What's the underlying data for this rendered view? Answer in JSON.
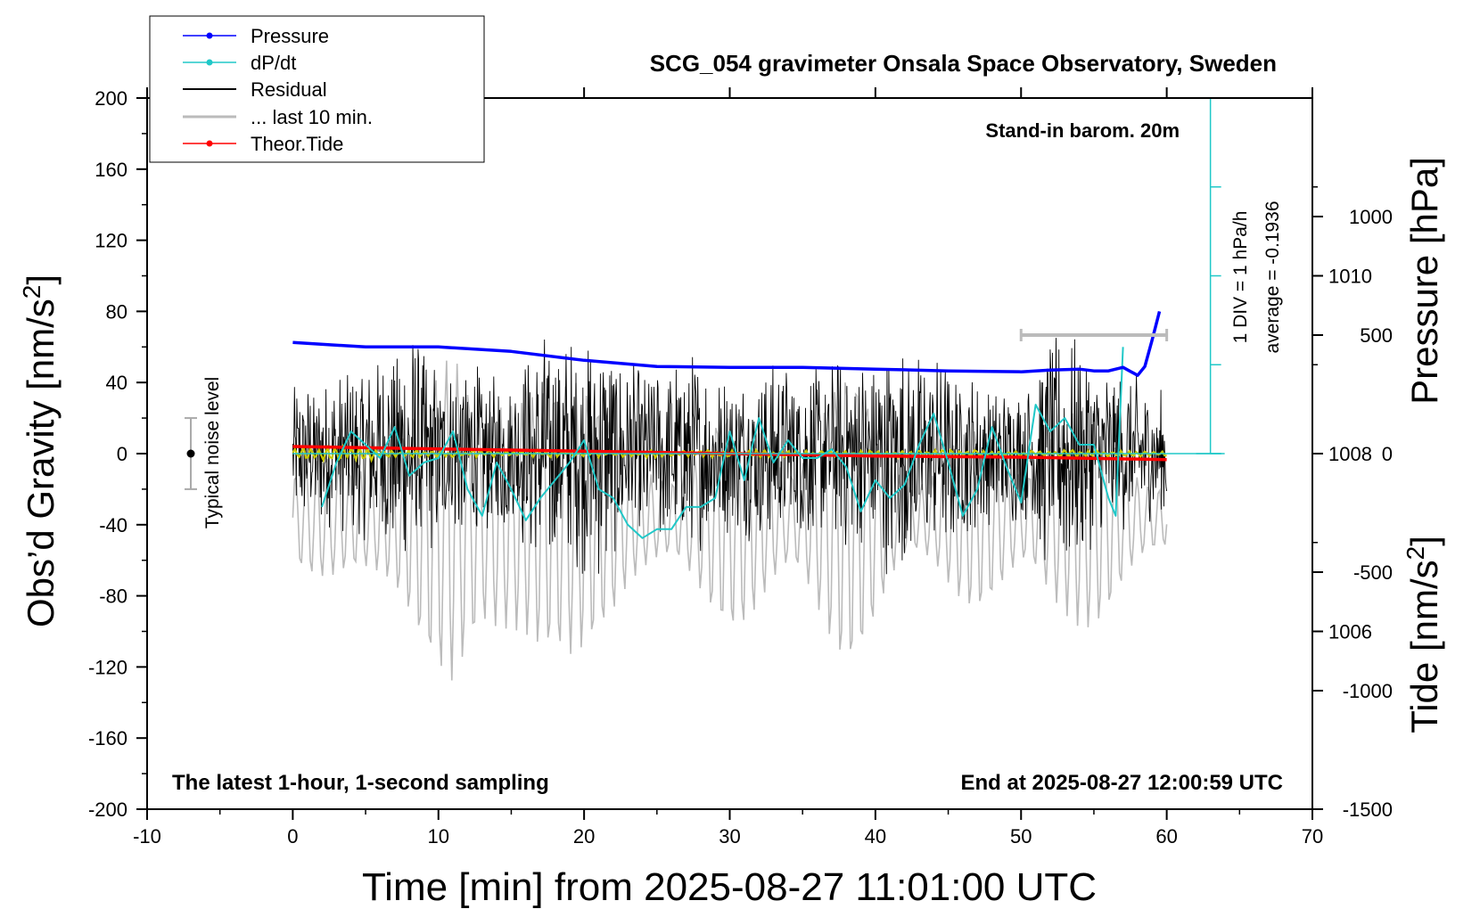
{
  "chart_data": {
    "type": "line",
    "title": "SCG_054 gravimeter Onsala Space Observatory, Sweden",
    "xlabel": "Time [min] from 2025-08-27 11:01:00 UTC",
    "ylabel_left": "Obs’d Gravity [nm/s²]",
    "ylabel_pressure": "Pressure [hPa]",
    "ylabel_tide": "Tide [nm/s²]",
    "xlim": [
      -10,
      70
    ],
    "ylim": [
      -200,
      200
    ],
    "pressure_range": [
      1004,
      1012
    ],
    "tide_range": [
      -1500,
      1500
    ],
    "x_ticks": [
      "-10",
      "0",
      "10",
      "20",
      "30",
      "40",
      "50",
      "60",
      "70"
    ],
    "y_ticks": [
      "-200",
      "-160",
      "-120",
      "-80",
      "-40",
      "0",
      "40",
      "80",
      "120",
      "160",
      "200"
    ],
    "pressure_ticks": [
      "1006",
      "1008",
      "1010"
    ],
    "tide_ticks": [
      "-1500",
      "-1000",
      "-500",
      "0",
      "500",
      "1000"
    ],
    "annotations": {
      "barometer": "Stand-in barom. 20m",
      "div": "1 DIV = 1 hPa/h",
      "average": "average = -0.1936",
      "noise": "Typical noise level",
      "bottom_left": "The latest 1-hour, 1-second sampling",
      "bottom_right": "End at 2025-08-27 12:00:59 UTC"
    },
    "legend": [
      "Pressure",
      "dP/dt",
      "Residual",
      "... last 10 min.",
      "Theor.Tide"
    ],
    "colors": {
      "pressure": "#0000ff",
      "dpdt": "#20c8c8",
      "residual": "#000000",
      "last10": "#bbbbbb",
      "tide": "#ff0000",
      "smooth": "#c8c800"
    },
    "series": [
      {
        "name": "Pressure",
        "unit": "hPa",
        "x": [
          0,
          5,
          10,
          15,
          20,
          25,
          30,
          35,
          40,
          45,
          50,
          52,
          54,
          55,
          56,
          57,
          58,
          58.5,
          59,
          59.5
        ],
        "y": [
          1009.25,
          1009.2,
          1009.2,
          1009.15,
          1009.05,
          1008.98,
          1008.97,
          1008.97,
          1008.95,
          1008.93,
          1008.92,
          1008.94,
          1008.95,
          1008.93,
          1008.93,
          1008.97,
          1008.88,
          1008.98,
          1009.28,
          1009.6
        ]
      },
      {
        "name": "dP/dt",
        "unit": "DIV",
        "x": [
          2,
          3,
          4,
          5,
          6,
          7,
          8,
          9,
          10,
          11,
          12,
          13,
          14,
          15,
          16,
          17,
          18,
          19,
          20,
          21,
          22,
          23,
          24,
          25,
          26,
          27,
          28,
          29,
          30,
          31,
          32,
          33,
          34,
          35,
          36,
          37,
          38,
          39,
          40,
          41,
          42,
          43,
          44,
          45,
          46,
          47,
          48,
          49,
          50,
          51,
          52,
          53,
          54,
          55,
          56,
          56.5,
          57
        ],
        "y": [
          -0.6,
          -0.1,
          0.25,
          0.1,
          -0.05,
          0.3,
          -0.25,
          -0.1,
          -0.05,
          0.25,
          -0.4,
          -0.7,
          -0.1,
          -0.4,
          -0.75,
          -0.5,
          -0.3,
          -0.1,
          0.15,
          -0.4,
          -0.5,
          -0.8,
          -0.95,
          -0.85,
          -0.85,
          -0.6,
          -0.6,
          -0.5,
          0.25,
          -0.3,
          0.4,
          -0.1,
          0.15,
          -0.05,
          -0.05,
          0.05,
          -0.15,
          -0.65,
          -0.3,
          -0.5,
          -0.35,
          0.1,
          0.45,
          -0.1,
          -0.7,
          -0.4,
          0.3,
          -0.15,
          -0.55,
          0.55,
          0.25,
          0.4,
          0.1,
          0.1,
          -0.5,
          -0.7,
          1.2
        ]
      },
      {
        "name": "Residual",
        "unit": "nm/s²",
        "x": [
          0,
          60
        ],
        "amplitude_envelope_x": [
          0,
          3,
          6,
          8,
          10,
          12,
          15,
          17,
          19,
          21,
          23,
          25,
          27,
          30,
          33,
          36,
          39,
          41,
          43,
          45,
          47,
          50,
          52,
          54,
          56,
          58,
          60
        ],
        "amplitude_envelope": [
          40,
          45,
          55,
          75,
          50,
          55,
          45,
          70,
          65,
          75,
          55,
          50,
          60,
          45,
          55,
          50,
          60,
          70,
          60,
          55,
          45,
          40,
          70,
          65,
          50,
          45,
          35
        ]
      },
      {
        "name": "... last 10 min.",
        "unit": "nm/s²",
        "x": [
          0,
          60
        ],
        "baseline_tide": -270,
        "amplitude_envelope_x": [
          0,
          4,
          7,
          9,
          11,
          13,
          15,
          17,
          19,
          21,
          23,
          26,
          29,
          32,
          35,
          38,
          41,
          44,
          47,
          50,
          52,
          54,
          56,
          58,
          60
        ],
        "amplitude_envelope": [
          200,
          300,
          450,
          650,
          800,
          550,
          700,
          850,
          750,
          500,
          350,
          300,
          400,
          500,
          500,
          550,
          450,
          300,
          350,
          350,
          600,
          500,
          400,
          250,
          200
        ]
      },
      {
        "name": "Theor.Tide",
        "unit": "nm/s²",
        "x": [
          0,
          10,
          20,
          30,
          40,
          50,
          60
        ],
        "y": [
          30,
          20,
          10,
          0,
          -10,
          -15,
          -25
        ]
      }
    ],
    "noise_level": {
      "x": -7,
      "center": 0,
      "half_range": 20
    },
    "last10_marker": {
      "x_start": 50,
      "x_end": 60,
      "tide_value": 500
    },
    "dpdt_axis": {
      "x": 63,
      "baseline_pressure": 1008,
      "div_count": 8
    },
    "grid": false,
    "legend_position": "top-left"
  }
}
